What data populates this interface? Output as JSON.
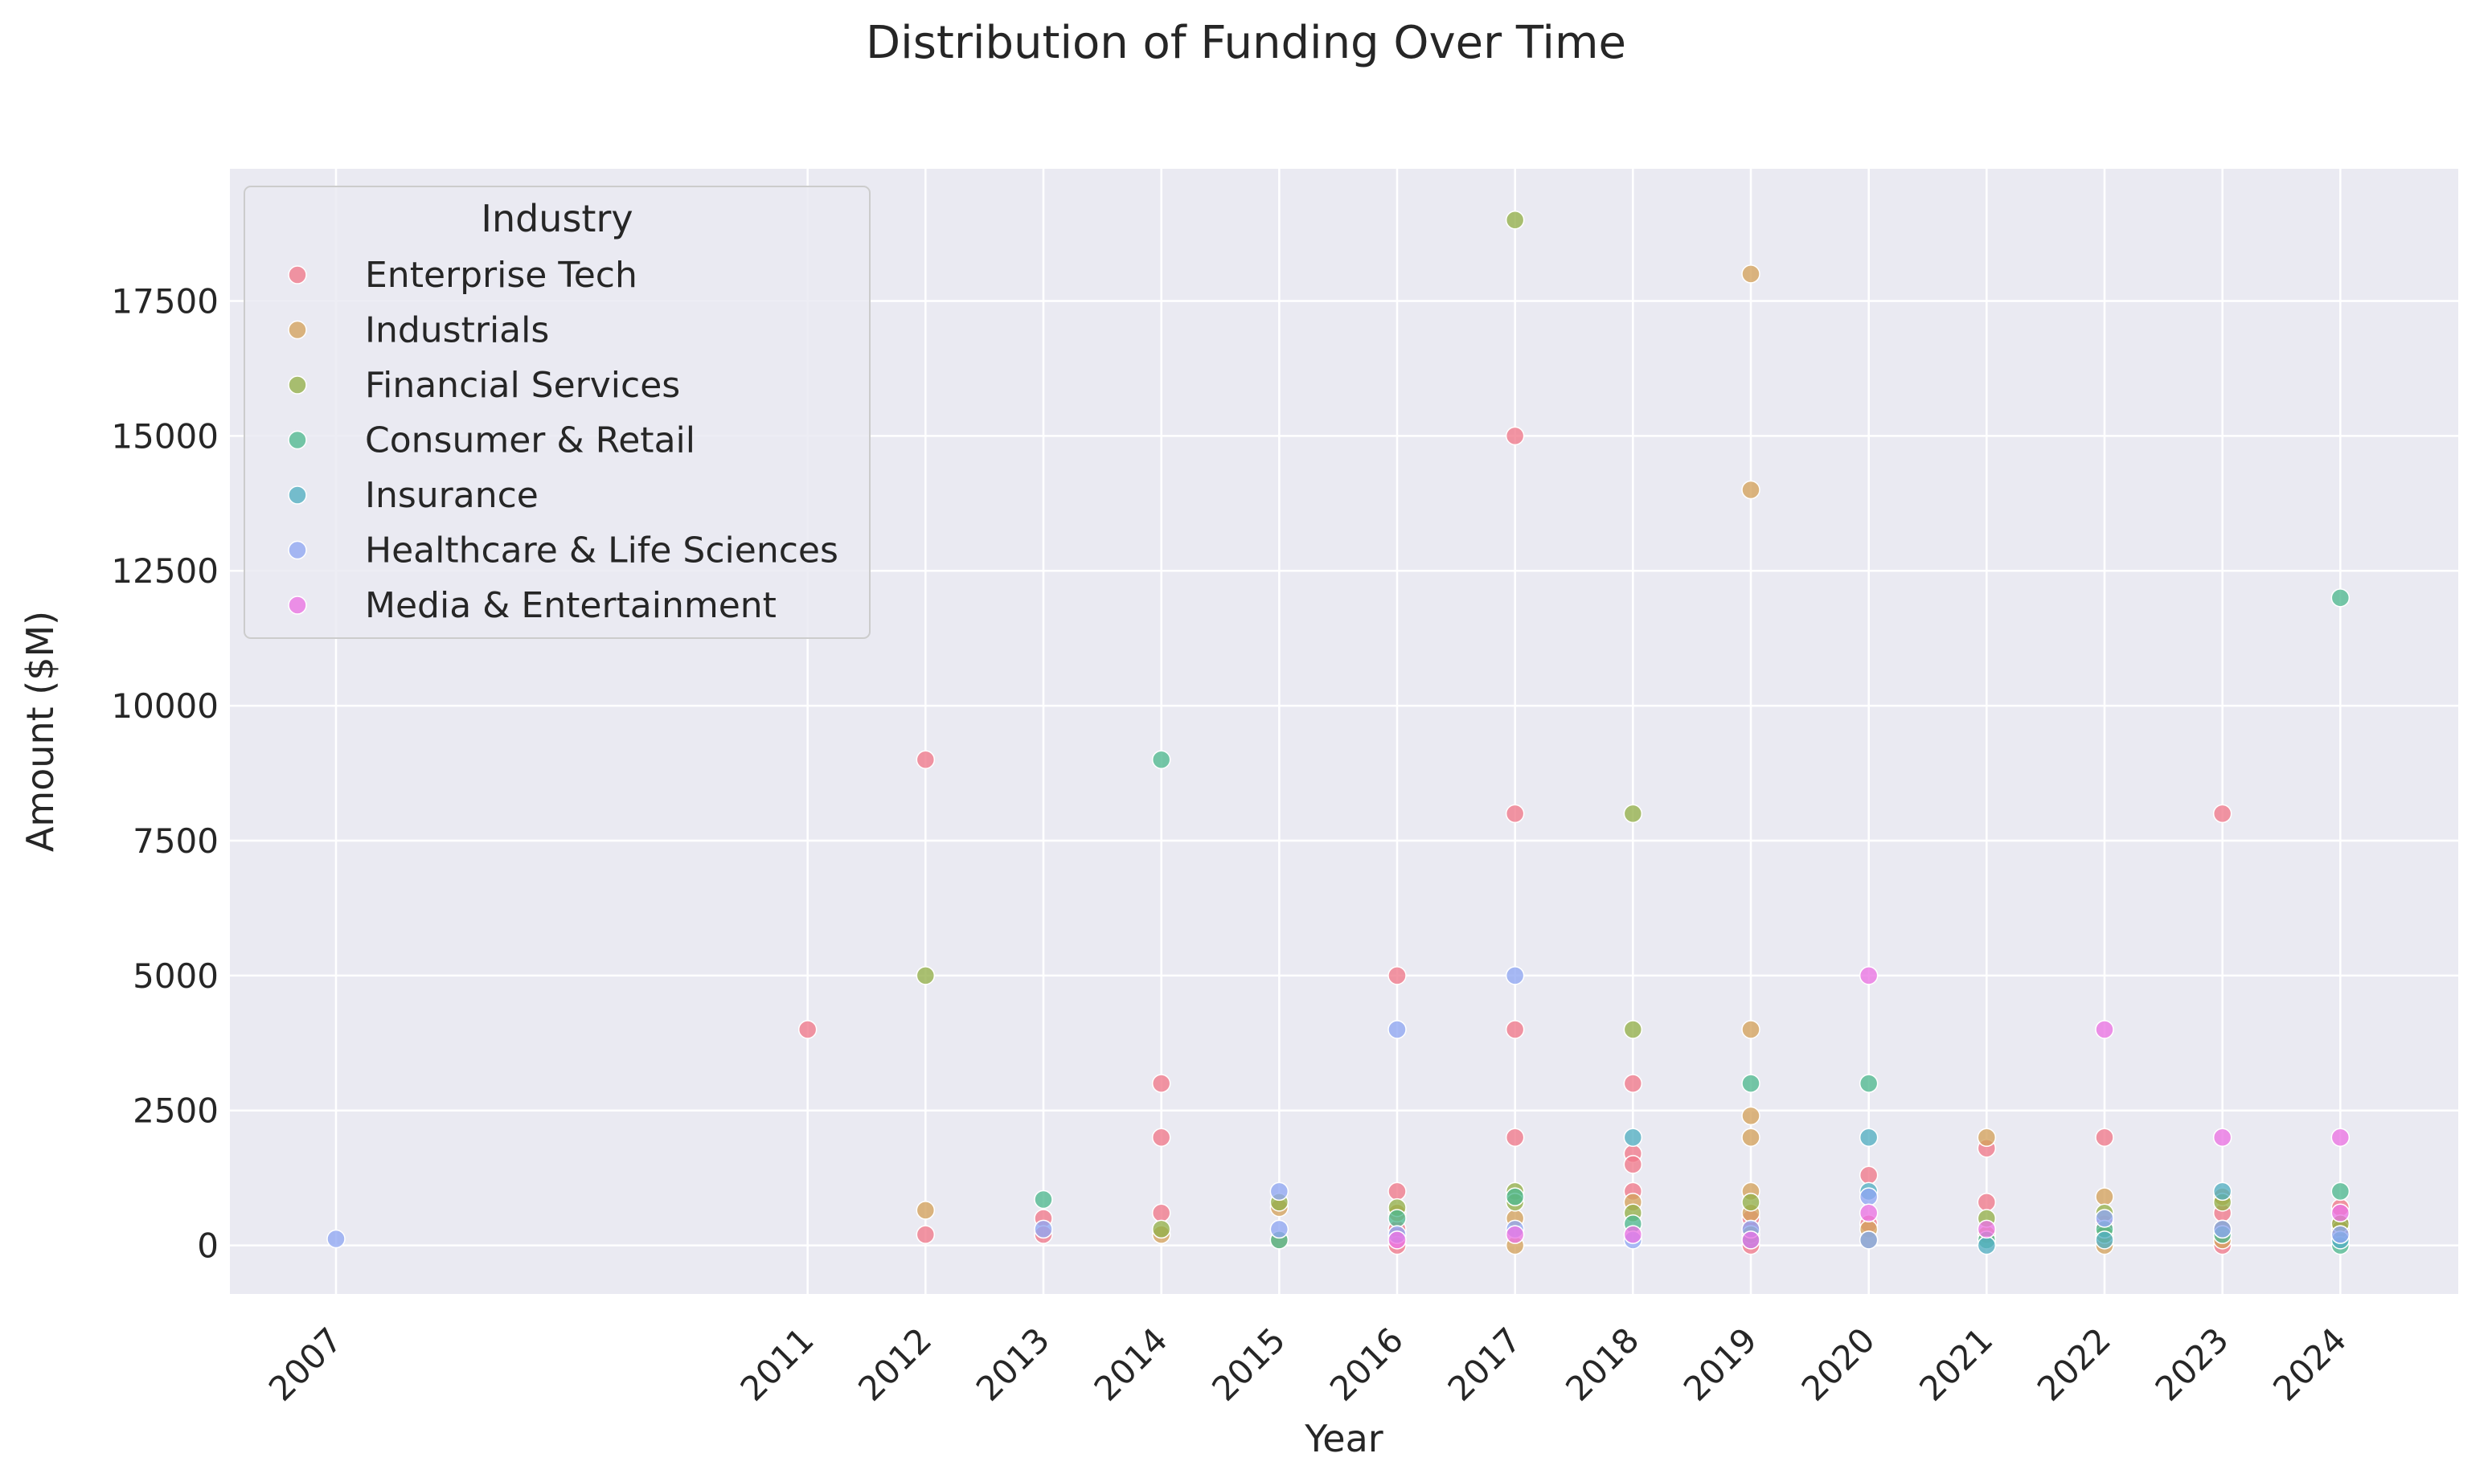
{
  "chart_data": {
    "type": "scatter",
    "title": "Distribution of Funding Over Time",
    "xlabel": "Year",
    "ylabel": "Amount ($M)",
    "xlim": [
      2006.1,
      2025.0
    ],
    "ylim": [
      -900,
      19950
    ],
    "x_ticks": [
      2007,
      2011,
      2012,
      2013,
      2014,
      2015,
      2016,
      2017,
      2018,
      2019,
      2020,
      2021,
      2022,
      2023,
      2024
    ],
    "y_ticks": [
      0,
      2500,
      5000,
      7500,
      10000,
      12500,
      15000,
      17500
    ],
    "grid": true,
    "legend": {
      "title": "Industry",
      "placement": "top-left"
    },
    "series": [
      {
        "name": "Enterprise Tech",
        "color": "#f0798a",
        "points": [
          [
            2011,
            4000
          ],
          [
            2012,
            9000
          ],
          [
            2012,
            200
          ],
          [
            2013,
            500
          ],
          [
            2013,
            200
          ],
          [
            2014,
            3000
          ],
          [
            2014,
            2000
          ],
          [
            2014,
            600
          ],
          [
            2016,
            5000
          ],
          [
            2016,
            1000
          ],
          [
            2016,
            300
          ],
          [
            2016,
            0
          ],
          [
            2017,
            15000
          ],
          [
            2017,
            8000
          ],
          [
            2017,
            4000
          ],
          [
            2017,
            2000
          ],
          [
            2018,
            3000
          ],
          [
            2018,
            1700
          ],
          [
            2018,
            1500
          ],
          [
            2018,
            1000
          ],
          [
            2019,
            500
          ],
          [
            2019,
            300
          ],
          [
            2019,
            0
          ],
          [
            2020,
            1300
          ],
          [
            2020,
            400
          ],
          [
            2021,
            1800
          ],
          [
            2021,
            800
          ],
          [
            2022,
            2000
          ],
          [
            2022,
            400
          ],
          [
            2023,
            8000
          ],
          [
            2023,
            600
          ],
          [
            2023,
            300
          ],
          [
            2023,
            0
          ],
          [
            2024,
            700
          ],
          [
            2024,
            400
          ],
          [
            2024,
            200
          ]
        ]
      },
      {
        "name": "Industrials",
        "color": "#d4a25c",
        "points": [
          [
            2012,
            650
          ],
          [
            2014,
            200
          ],
          [
            2015,
            700
          ],
          [
            2015,
            100
          ],
          [
            2016,
            600
          ],
          [
            2017,
            500
          ],
          [
            2017,
            0
          ],
          [
            2018,
            800
          ],
          [
            2019,
            18000
          ],
          [
            2019,
            14000
          ],
          [
            2019,
            4000
          ],
          [
            2019,
            2400
          ],
          [
            2019,
            2000
          ],
          [
            2019,
            1000
          ],
          [
            2019,
            600
          ],
          [
            2020,
            300
          ],
          [
            2021,
            2000
          ],
          [
            2021,
            200
          ],
          [
            2022,
            900
          ],
          [
            2022,
            0
          ],
          [
            2023,
            900
          ],
          [
            2023,
            100
          ],
          [
            2024,
            300
          ]
        ]
      },
      {
        "name": "Financial Services",
        "color": "#93b04a",
        "points": [
          [
            2012,
            5000
          ],
          [
            2014,
            300
          ],
          [
            2015,
            800
          ],
          [
            2016,
            700
          ],
          [
            2017,
            19000
          ],
          [
            2017,
            1000
          ],
          [
            2017,
            800
          ],
          [
            2018,
            8000
          ],
          [
            2018,
            4000
          ],
          [
            2018,
            600
          ],
          [
            2019,
            800
          ],
          [
            2019,
            200
          ],
          [
            2020,
            100
          ],
          [
            2021,
            500
          ],
          [
            2022,
            600
          ],
          [
            2022,
            200
          ],
          [
            2023,
            800
          ],
          [
            2023,
            300
          ],
          [
            2024,
            400
          ]
        ]
      },
      {
        "name": "Consumer & Retail",
        "color": "#4fb88f",
        "points": [
          [
            2013,
            850
          ],
          [
            2014,
            9000
          ],
          [
            2015,
            100
          ],
          [
            2016,
            500
          ],
          [
            2017,
            900
          ],
          [
            2018,
            400
          ],
          [
            2019,
            3000
          ],
          [
            2020,
            3000
          ],
          [
            2021,
            100
          ],
          [
            2022,
            300
          ],
          [
            2023,
            200
          ],
          [
            2024,
            12000
          ],
          [
            2024,
            1000
          ],
          [
            2024,
            0
          ]
        ]
      },
      {
        "name": "Insurance",
        "color": "#52aec2",
        "points": [
          [
            2018,
            2000
          ],
          [
            2019,
            100
          ],
          [
            2020,
            2000
          ],
          [
            2020,
            1000
          ],
          [
            2021,
            0
          ],
          [
            2022,
            100
          ],
          [
            2023,
            1000
          ],
          [
            2024,
            100
          ]
        ]
      },
      {
        "name": "Healthcare & Life Sciences",
        "color": "#8fa6f2",
        "points": [
          [
            2007,
            120
          ],
          [
            2013,
            300
          ],
          [
            2015,
            1000
          ],
          [
            2015,
            300
          ],
          [
            2016,
            4000
          ],
          [
            2016,
            200
          ],
          [
            2017,
            5000
          ],
          [
            2017,
            300
          ],
          [
            2018,
            100
          ],
          [
            2019,
            300
          ],
          [
            2020,
            900
          ],
          [
            2020,
            100
          ],
          [
            2022,
            500
          ],
          [
            2023,
            300
          ],
          [
            2024,
            200
          ]
        ]
      },
      {
        "name": "Media & Entertainment",
        "color": "#ea73e3",
        "points": [
          [
            2016,
            100
          ],
          [
            2017,
            200
          ],
          [
            2018,
            200
          ],
          [
            2019,
            100
          ],
          [
            2020,
            5000
          ],
          [
            2020,
            600
          ],
          [
            2021,
            300
          ],
          [
            2022,
            4000
          ],
          [
            2023,
            2000
          ],
          [
            2024,
            2000
          ],
          [
            2024,
            600
          ]
        ]
      }
    ]
  }
}
